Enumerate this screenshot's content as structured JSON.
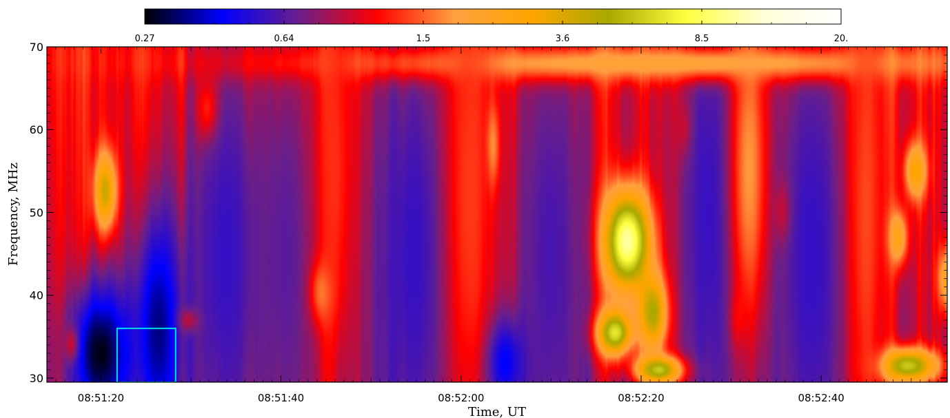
{
  "chart_data": {
    "type": "heatmap",
    "title": "",
    "xlabel": "Time, UT",
    "ylabel": "Frequency, MHz",
    "x_tick_labels": [
      "08:51:20",
      "08:51:40",
      "08:52:00",
      "08:52:20",
      "08:52:40"
    ],
    "x_tick_seconds": [
      20,
      40,
      60,
      80,
      100
    ],
    "xlim_seconds": [
      14,
      114
    ],
    "y_ticks": [
      30,
      40,
      50,
      60,
      70
    ],
    "ylim": [
      29.5,
      70
    ],
    "colorbar": {
      "scale": "log",
      "tick_labels": [
        "0.27",
        "0.64",
        "1.5",
        "3.6",
        "8.5",
        "20."
      ],
      "range": [
        0.27,
        20
      ],
      "colors": [
        "#000000",
        "#0000ff",
        "#6a1f8a",
        "#ff0000",
        "#ffa040",
        "#ffa500",
        "#a8a800",
        "#ffff40",
        "#ffffd8",
        "#ffffff"
      ]
    },
    "background_level": 0.9,
    "features": [
      {
        "kind": "burst",
        "t": 20.5,
        "f": 52.5,
        "dt": 0.9,
        "df": 3.5,
        "level": 4.0
      },
      {
        "kind": "burst",
        "t": 32.0,
        "f": 62.0,
        "dt": 0.8,
        "df": 2.6,
        "level": 3.6
      },
      {
        "kind": "burst",
        "t": 44.5,
        "f": 40.5,
        "dt": 1.0,
        "df": 2.6,
        "level": 3.2
      },
      {
        "kind": "burst",
        "t": 63.5,
        "f": 58.0,
        "dt": 0.5,
        "df": 3.5,
        "level": 2.8
      },
      {
        "kind": "burst",
        "t": 78.5,
        "f": 46.5,
        "dt": 2.0,
        "df": 4.5,
        "level": 12.0
      },
      {
        "kind": "burst",
        "t": 77.0,
        "f": 35.5,
        "dt": 1.5,
        "df": 2.0,
        "level": 8.0
      },
      {
        "kind": "burst",
        "t": 81.5,
        "f": 38.0,
        "dt": 1.2,
        "df": 3.5,
        "level": 7.0
      },
      {
        "kind": "burst",
        "t": 82.5,
        "f": 31.0,
        "dt": 2.0,
        "df": 1.2,
        "level": 10.0
      },
      {
        "kind": "burst",
        "t": 109.5,
        "f": 31.5,
        "dt": 2.5,
        "df": 1.5,
        "level": 6.0
      },
      {
        "kind": "burst",
        "t": 110.5,
        "f": 55.0,
        "dt": 0.9,
        "df": 2.5,
        "level": 3.0
      },
      {
        "kind": "burst",
        "t": 108.5,
        "f": 47.0,
        "dt": 0.8,
        "df": 2.5,
        "level": 2.8
      },
      {
        "kind": "burst",
        "t": 90.5,
        "f": 37.5,
        "dt": 0.6,
        "df": 2.5,
        "level": 2.5
      },
      {
        "kind": "burst",
        "t": 17.0,
        "f": 34.0,
        "dt": 0.6,
        "df": 1.5,
        "level": 2.5
      },
      {
        "kind": "burst",
        "t": 29.5,
        "f": 37.0,
        "dt": 1.0,
        "df": 1.0,
        "level": 2.3
      },
      {
        "kind": "burst",
        "t": 85.0,
        "f": 60.0,
        "dt": 0.6,
        "df": 2.5,
        "level": 2.2
      },
      {
        "kind": "burst",
        "t": 96.0,
        "f": 50.0,
        "dt": 0.7,
        "df": 2.5,
        "level": 2.6
      },
      {
        "kind": "burst",
        "t": 114.0,
        "f": 42.0,
        "dt": 0.8,
        "df": 3.0,
        "level": 2.4
      },
      {
        "kind": "dark",
        "t": 20.0,
        "f": 33.0,
        "dt": 2.5,
        "df": 6.0,
        "level": 0.28
      },
      {
        "kind": "dark",
        "t": 26.5,
        "f": 36.0,
        "dt": 2.0,
        "df": 10.0,
        "level": 0.33
      },
      {
        "kind": "dark",
        "t": 64.5,
        "f": 32.0,
        "dt": 2.0,
        "df": 4.0,
        "level": 0.32
      },
      {
        "kind": "dark",
        "t": 34.0,
        "f": 45.0,
        "dt": 3.5,
        "df": 20.0,
        "level": 0.55
      },
      {
        "kind": "dark",
        "t": 55.0,
        "f": 45.0,
        "dt": 4.0,
        "df": 25.0,
        "level": 0.55
      },
      {
        "kind": "dark",
        "t": 70.0,
        "f": 45.0,
        "dt": 3.0,
        "df": 25.0,
        "level": 0.6
      },
      {
        "kind": "dark",
        "t": 88.0,
        "f": 50.0,
        "dt": 3.5,
        "df": 25.0,
        "level": 0.55
      },
      {
        "kind": "dark",
        "t": 99.0,
        "f": 45.0,
        "dt": 3.5,
        "df": 25.0,
        "level": 0.55
      },
      {
        "kind": "dark",
        "t": 40.5,
        "f": 45.0,
        "dt": 2.5,
        "df": 20.0,
        "level": 0.65
      },
      {
        "kind": "band",
        "t": 83.0,
        "f": 68.0,
        "dt": 30.0,
        "df": 1.5,
        "level": 2.0
      },
      {
        "kind": "band",
        "t": 92.0,
        "f": 55.0,
        "dt": 1.5,
        "df": 15.0,
        "level": 1.8
      },
      {
        "kind": "band",
        "t": 46.0,
        "f": 55.0,
        "dt": 1.5,
        "df": 20.0,
        "level": 1.3
      },
      {
        "kind": "band",
        "t": 61.0,
        "f": 52.0,
        "dt": 2.0,
        "df": 25.0,
        "level": 1.35
      },
      {
        "kind": "band",
        "t": 105.0,
        "f": 50.0,
        "dt": 1.5,
        "df": 25.0,
        "level": 1.4
      }
    ],
    "highlight_box": {
      "t0": 21.8,
      "t1": 28.3,
      "f0": 29.5,
      "f1": 36.0,
      "color": "#00e0e8"
    }
  }
}
